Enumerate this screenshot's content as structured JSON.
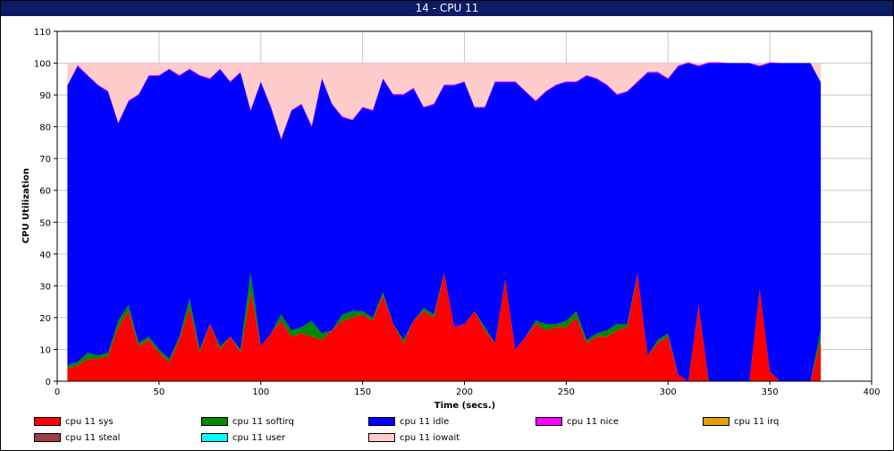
{
  "window": {
    "title": "14 - CPU 11"
  },
  "chart_data": {
    "type": "area",
    "stacked": true,
    "title": "14 - CPU 11",
    "xlabel": "Time (secs.)",
    "ylabel": "CPU Utilization",
    "xlim": [
      0,
      400
    ],
    "ylim": [
      0,
      110
    ],
    "xticks": [
      0,
      50,
      100,
      150,
      200,
      250,
      300,
      350,
      400
    ],
    "yticks": [
      0,
      10,
      20,
      30,
      40,
      50,
      60,
      70,
      80,
      90,
      100,
      110
    ],
    "grid": true,
    "legend_position": "bottom",
    "x": [
      5,
      10,
      15,
      20,
      25,
      30,
      35,
      40,
      45,
      50,
      55,
      60,
      65,
      70,
      75,
      80,
      85,
      90,
      95,
      100,
      105,
      110,
      115,
      120,
      125,
      130,
      135,
      140,
      145,
      150,
      155,
      160,
      165,
      170,
      175,
      180,
      185,
      190,
      195,
      200,
      205,
      210,
      215,
      220,
      225,
      230,
      235,
      240,
      245,
      250,
      255,
      260,
      265,
      270,
      275,
      280,
      285,
      290,
      295,
      300,
      305,
      310,
      315,
      320,
      325,
      330,
      335,
      340,
      345,
      350,
      355,
      360,
      365,
      370,
      375
    ],
    "series": [
      {
        "name": "cpu 11 sys",
        "color": "#ff0000",
        "values": [
          4,
          5,
          7,
          7,
          8,
          17,
          22,
          11,
          13,
          9,
          6,
          13,
          23,
          9,
          18,
          10,
          14,
          9,
          28,
          11,
          15,
          19,
          14,
          15,
          14,
          13,
          16,
          19,
          20,
          21,
          19,
          27,
          18,
          12,
          19,
          22,
          20,
          34,
          17,
          18,
          22,
          16,
          12,
          32,
          10,
          14,
          18,
          16,
          17,
          17,
          20,
          12,
          14,
          14,
          16,
          17,
          34,
          8,
          12,
          14,
          2,
          0,
          24,
          0,
          0,
          0,
          0,
          0,
          29,
          3,
          0,
          0,
          0,
          0,
          13
        ]
      },
      {
        "name": "cpu 11 softirq",
        "color": "#008800",
        "values": [
          1,
          1,
          2,
          1,
          1,
          2,
          2,
          1,
          1,
          1,
          1,
          1,
          3,
          1,
          0,
          1,
          0,
          1,
          6,
          0,
          0,
          2,
          2,
          2,
          5,
          2,
          0,
          2,
          2,
          1,
          1,
          1,
          0,
          1,
          0,
          1,
          1,
          0,
          0,
          0,
          0,
          1,
          0,
          0,
          0,
          0,
          1,
          2,
          1,
          2,
          2,
          1,
          1,
          2,
          2,
          1,
          0,
          0,
          1,
          1,
          0,
          0,
          0,
          0,
          0,
          0,
          0,
          0,
          0,
          0,
          0,
          0,
          0,
          0,
          3
        ]
      },
      {
        "name": "cpu 11 idle",
        "color": "#0000ff",
        "values": [
          88,
          93,
          87,
          85,
          82,
          62,
          64,
          78,
          82,
          86,
          91,
          82,
          72,
          86,
          77,
          87,
          80,
          87,
          51,
          83,
          71,
          55,
          69,
          70,
          61,
          80,
          71,
          62,
          60,
          64,
          65,
          67,
          72,
          77,
          73,
          63,
          66,
          59,
          76,
          76,
          64,
          69,
          82,
          62,
          84,
          77,
          69,
          73,
          75,
          75,
          72,
          83,
          80,
          77,
          72,
          73,
          60,
          89,
          84,
          80,
          97,
          100,
          75,
          100,
          100,
          100,
          100,
          100,
          70,
          97,
          100,
          100,
          100,
          100,
          78
        ]
      },
      {
        "name": "cpu 11 nice",
        "color": "#ff00ff",
        "values": [
          0,
          0.4,
          0.3,
          0.3,
          0.3,
          0.4,
          0.3,
          0.3,
          0.3,
          0.3,
          0.3,
          0.3,
          0.3,
          0.3,
          0.3,
          0.3,
          0.3,
          0.3,
          0.4,
          0.3,
          0.3,
          0.4,
          0.3,
          0.3,
          0.4,
          0.4,
          0.3,
          0.3,
          0.3,
          0.3,
          0.3,
          0.3,
          0.3,
          0.3,
          0.3,
          0.3,
          0.3,
          0.3,
          0.3,
          0.3,
          0.3,
          0.3,
          0.3,
          0.3,
          0.3,
          0.3,
          0.3,
          0.3,
          0.3,
          0.3,
          0.3,
          0.3,
          0.3,
          0.3,
          0.3,
          0.3,
          0.3,
          0.3,
          0.3,
          0.3,
          0.3,
          0.3,
          0.3,
          0.3,
          0.3,
          0,
          0,
          0,
          0.3,
          0.3,
          0,
          0,
          0,
          0,
          0
        ]
      },
      {
        "name": "cpu 11 irq",
        "color": "#e0a000",
        "values": [
          0,
          0,
          0,
          0,
          0,
          0,
          0,
          0,
          0,
          0,
          0,
          0,
          0,
          0,
          0,
          0,
          0,
          0,
          0,
          0,
          0,
          0,
          0,
          0,
          0,
          0,
          0,
          0,
          0,
          0,
          0,
          0,
          0,
          0,
          0,
          0,
          0,
          0,
          0,
          0,
          0,
          0,
          0,
          0,
          0,
          0,
          0,
          0,
          0,
          0,
          0,
          0,
          0,
          0,
          0,
          0,
          0,
          0,
          0,
          0,
          0,
          0,
          0,
          0,
          0,
          0,
          0,
          0,
          0,
          0,
          0,
          0,
          0,
          0,
          0
        ]
      },
      {
        "name": "cpu 11 steal",
        "color": "#a03c3c",
        "values": [
          0,
          0,
          0,
          0,
          0,
          0,
          0,
          0,
          0,
          0,
          0,
          0,
          0,
          0,
          0,
          0,
          0,
          0,
          0,
          0,
          0,
          0,
          0,
          0,
          0,
          0,
          0,
          0,
          0,
          0,
          0,
          0,
          0,
          0,
          0,
          0,
          0,
          0,
          0,
          0,
          0,
          0,
          0,
          0,
          0,
          0,
          0,
          0,
          0,
          0,
          0,
          0,
          0,
          0,
          0,
          0,
          0,
          0,
          0,
          0,
          0,
          0,
          0,
          0,
          0,
          0,
          0,
          0,
          0,
          0,
          0,
          0,
          0,
          0,
          0
        ]
      },
      {
        "name": "cpu 11 user",
        "color": "#00ffff",
        "values": [
          0,
          0,
          0,
          0,
          0,
          0,
          0,
          0,
          0,
          0,
          0,
          0,
          0,
          0,
          0,
          0,
          0,
          0,
          0,
          0,
          0,
          0,
          0,
          0,
          0,
          0,
          0,
          0,
          0,
          0,
          0,
          0,
          0,
          0,
          0,
          0,
          0,
          0,
          0,
          0,
          0,
          0,
          0,
          0,
          0,
          0,
          0,
          0,
          0,
          0,
          0,
          0,
          0,
          0,
          0,
          0,
          0,
          0,
          0,
          0,
          0,
          0,
          0,
          0,
          0,
          0,
          0,
          0,
          0,
          0,
          0,
          0,
          0,
          0,
          0
        ]
      },
      {
        "name": "cpu 11 iowait",
        "color": "#ffcccc",
        "values": [
          7,
          0.6,
          3.7,
          6.7,
          8.7,
          18.6,
          11.7,
          9.7,
          3.7,
          3.7,
          1.7,
          3.7,
          1.7,
          3.7,
          4.7,
          1.7,
          5.7,
          2.7,
          14.6,
          5.7,
          13.7,
          23.6,
          14.7,
          12.7,
          19.6,
          4.6,
          12.7,
          16.7,
          17.7,
          13.7,
          14.7,
          4.7,
          9.7,
          9.7,
          7.7,
          13.7,
          12.7,
          6.7,
          6.7,
          5.7,
          13.7,
          13.7,
          5.7,
          5.7,
          5.7,
          8.7,
          11.7,
          8.7,
          6.7,
          5.7,
          5.7,
          3.7,
          4.7,
          6.7,
          9.7,
          8.7,
          5.7,
          2.7,
          2.7,
          4.7,
          0.7,
          0,
          0.7,
          0,
          0,
          0,
          0,
          0,
          0.7,
          0,
          0,
          0,
          0,
          0,
          6
        ]
      }
    ]
  }
}
